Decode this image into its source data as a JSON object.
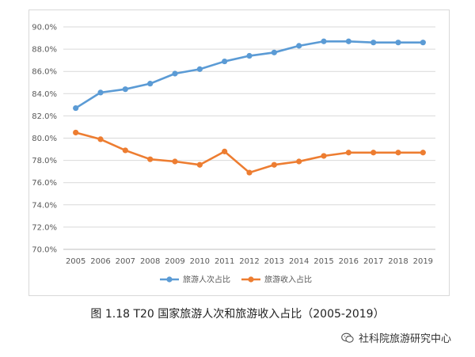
{
  "chart_data": {
    "type": "line",
    "x": [
      "2005",
      "2006",
      "2007",
      "2008",
      "2009",
      "2010",
      "2011",
      "2012",
      "2013",
      "2014",
      "2015",
      "2016",
      "2017",
      "2018",
      "2019"
    ],
    "series": [
      {
        "name": "旅游人次占比",
        "color": "#5b9bd5",
        "values": [
          82.7,
          84.1,
          84.4,
          84.9,
          85.8,
          86.2,
          86.9,
          87.4,
          87.7,
          88.3,
          88.7,
          88.7,
          88.6,
          88.6,
          88.6
        ]
      },
      {
        "name": "旅游收入占比",
        "color": "#ed7d31",
        "values": [
          80.5,
          79.9,
          78.9,
          78.1,
          77.9,
          77.6,
          78.8,
          76.9,
          77.6,
          77.9,
          78.4,
          78.7,
          78.7,
          78.7,
          78.7
        ]
      }
    ],
    "y_ticks": [
      "70.0%",
      "72.0%",
      "74.0%",
      "76.0%",
      "78.0%",
      "80.0%",
      "82.0%",
      "84.0%",
      "86.0%",
      "88.0%",
      "90.0%"
    ],
    "ylim": [
      70,
      90
    ],
    "grid": true,
    "legend": "bottom-center",
    "title": "",
    "xlabel": "",
    "ylabel": ""
  },
  "caption": "图 1.18 T20 国家旅游人次和旅游收入占比（2005-2019）",
  "watermark": {
    "text": "社科院旅游研究中心",
    "icon": "wechat-icon"
  }
}
